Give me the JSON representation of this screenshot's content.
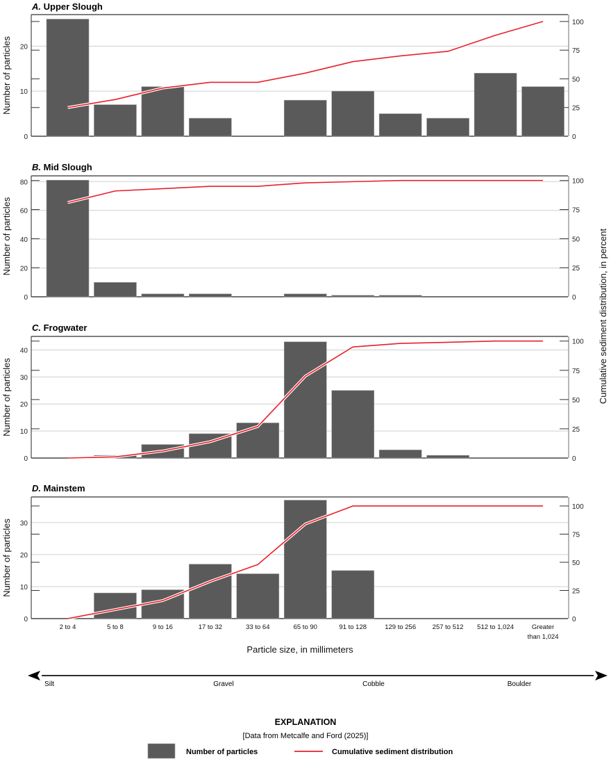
{
  "chart_data": {
    "type": "bar",
    "categories": [
      "2 to 4",
      "5 to 8",
      "9 to 16",
      "17 to 32",
      "33 to 64",
      "65 to 90",
      "91 to 128",
      "129 to 256",
      "257 to 512",
      "512 to 1,024",
      "Greater than 1,024"
    ],
    "category_lines": [
      [
        "2 to 4"
      ],
      [
        "5 to 8"
      ],
      [
        "9 to 16"
      ],
      [
        "17 to 32"
      ],
      [
        "33 to 64"
      ],
      [
        "65 to 90"
      ],
      [
        "91 to 128"
      ],
      [
        "129 to 256"
      ],
      [
        "257 to 512"
      ],
      [
        "512 to 1,024"
      ],
      [
        "Greater",
        "than 1,024"
      ]
    ],
    "xlabel": "Particle size, in millimeters",
    "ylabel_left": "Number of particles",
    "ylabel_right": "Cumulative sediment distribution, in percent",
    "grid": true,
    "panels": [
      {
        "letter": "A.",
        "name": "Upper Slough",
        "ylim_left": [
          0,
          27
        ],
        "left_ticks": [
          0,
          10,
          20
        ],
        "ylim_right": [
          0,
          106
        ],
        "right_ticks": [
          0,
          25,
          50,
          75,
          100
        ],
        "counts": [
          26,
          7,
          11,
          4,
          0,
          8,
          10,
          5,
          4,
          14,
          11
        ],
        "cumulative_percent": [
          25,
          32,
          42,
          47,
          47,
          55,
          65,
          70,
          74,
          88,
          100
        ]
      },
      {
        "letter": "B.",
        "name": "Mid Slough",
        "ylim_left": [
          0,
          84
        ],
        "left_ticks": [
          0,
          20,
          40,
          60,
          80
        ],
        "ylim_right": [
          0,
          104
        ],
        "right_ticks": [
          0,
          25,
          50,
          75,
          100
        ],
        "counts": [
          81,
          10,
          2,
          2,
          0,
          2,
          1,
          1,
          0,
          0,
          0
        ],
        "cumulative_percent": [
          81,
          91,
          93,
          95,
          95,
          98,
          99,
          100,
          100,
          100,
          100
        ]
      },
      {
        "letter": "C.",
        "name": "Frogwater",
        "ylim_left": [
          0,
          45
        ],
        "left_ticks": [
          0,
          10,
          20,
          30,
          40
        ],
        "ylim_right": [
          0,
          104
        ],
        "right_ticks": [
          0,
          25,
          50,
          75,
          100
        ],
        "counts": [
          0,
          1,
          5,
          9,
          13,
          43,
          25,
          3,
          1,
          0,
          0
        ],
        "cumulative_percent": [
          0,
          1,
          6,
          14,
          27,
          70,
          95,
          98,
          99,
          100,
          100
        ]
      },
      {
        "letter": "D.",
        "name": "Mainstem",
        "ylim_left": [
          0,
          38
        ],
        "left_ticks": [
          0,
          10,
          20,
          30
        ],
        "ylim_right": [
          0,
          108
        ],
        "right_ticks": [
          0,
          25,
          50,
          75,
          100
        ],
        "counts": [
          0,
          8,
          9,
          17,
          14,
          37,
          15,
          0,
          0,
          0,
          0
        ],
        "cumulative_percent": [
          0,
          8,
          16,
          33,
          48,
          84,
          100,
          100,
          100,
          100,
          100
        ]
      }
    ],
    "series": [
      {
        "name": "Number of particles",
        "kind": "bar",
        "color": "#595a59"
      },
      {
        "name": "Cumulative sediment distribution",
        "kind": "line",
        "color": "#e8202a"
      }
    ]
  },
  "size_classes": [
    "Silt",
    "Gravel",
    "Cobble",
    "Boulder"
  ],
  "explanation": {
    "title": "EXPLANATION",
    "source": "[Data from Metcalfe and Ford (2025)]",
    "bar_label": "Number of particles",
    "line_label": "Cumulative sediment distribution"
  },
  "colors": {
    "bar": "#595a59",
    "line": "#e8202a",
    "grid": "#cfcfcf",
    "axis": "#6e6e6e"
  }
}
